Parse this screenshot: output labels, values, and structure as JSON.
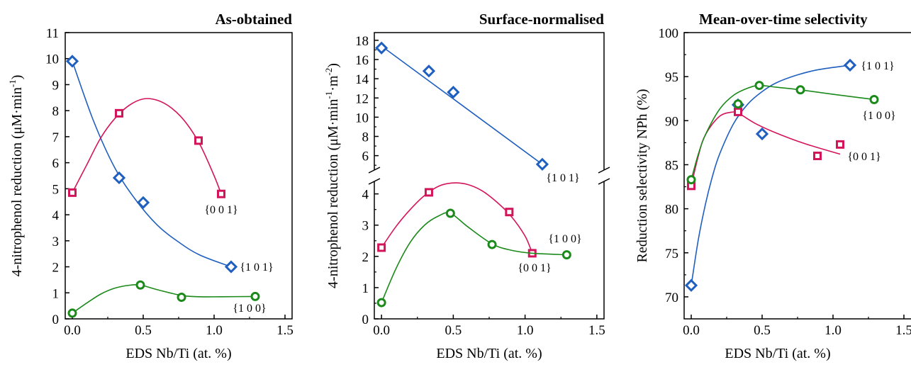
{
  "colors": {
    "blue": "#1f5fbf",
    "red": "#d4145a",
    "green": "#1b8a1b",
    "axis": "#000000"
  },
  "chart_data": [
    {
      "type": "scatter",
      "title": "As-obtained",
      "xlabel": "EDS Nb/Ti (at. %)",
      "ylabel_main": "4-nitrophenol reduction (μM·min",
      "ylabel_sup": "-1",
      "ylabel_tail": ")",
      "xlim": [
        -0.05,
        1.55
      ],
      "ylim": [
        0,
        11
      ],
      "xticks": [
        "0.0",
        "0.5",
        "1.0",
        "1.5"
      ],
      "yticks": [
        "0",
        "1",
        "2",
        "3",
        "4",
        "5",
        "6",
        "7",
        "8",
        "9",
        "10",
        "11"
      ],
      "series": [
        {
          "name": "{1 0 1}",
          "color": "blue",
          "marker": "diamond",
          "x": [
            0.0,
            0.33,
            0.5,
            1.12
          ],
          "y": [
            9.9,
            5.42,
            4.47,
            2.0
          ],
          "curve_x": [
            0.0,
            0.15,
            0.3,
            0.45,
            0.6,
            0.75,
            0.9,
            1.12
          ],
          "curve_y": [
            9.9,
            7.6,
            5.8,
            4.55,
            3.6,
            2.95,
            2.45,
            2.0
          ]
        },
        {
          "name": "{0 0 1}",
          "color": "red",
          "marker": "square",
          "x": [
            0.0,
            0.33,
            0.89,
            1.05
          ],
          "y": [
            4.85,
            7.9,
            6.85,
            4.8
          ],
          "curve_x": [
            0.0,
            0.1,
            0.2,
            0.3,
            0.4,
            0.5,
            0.6,
            0.7,
            0.8,
            0.9,
            1.0,
            1.05
          ],
          "curve_y": [
            4.85,
            5.9,
            6.95,
            7.7,
            8.2,
            8.45,
            8.4,
            8.1,
            7.55,
            6.7,
            5.5,
            4.8
          ]
        },
        {
          "name": "{1 0 0}",
          "color": "green",
          "marker": "circle",
          "x": [
            0.0,
            0.48,
            0.77,
            1.29
          ],
          "y": [
            0.22,
            1.3,
            0.83,
            0.86
          ],
          "curve_x": [
            0.0,
            0.1,
            0.2,
            0.3,
            0.4,
            0.48,
            0.6,
            0.77,
            0.9,
            1.05,
            1.29
          ],
          "curve_y": [
            0.22,
            0.6,
            0.95,
            1.18,
            1.29,
            1.3,
            1.12,
            0.9,
            0.85,
            0.85,
            0.86
          ]
        }
      ]
    },
    {
      "type": "scatter",
      "title": "Surface-normalised",
      "xlabel": "EDS Nb/Ti (at. %)",
      "ylabel_main": "4-nitrophenol reduction (μM·min",
      "ylabel_sup": "-1",
      "ylabel_mid": "·m",
      "ylabel_sup2": "-2",
      "ylabel_tail": ")",
      "xlim": [
        -0.05,
        1.55
      ],
      "ylim_lower": [
        0,
        4.4
      ],
      "ylim_upper": [
        4.5,
        18.8
      ],
      "xticks": [
        "0.0",
        "0.5",
        "1.0",
        "1.5"
      ],
      "yticks_lower": [
        "0",
        "1",
        "2",
        "3",
        "4"
      ],
      "yticks_upper": [
        "6",
        "8",
        "10",
        "12",
        "14",
        "16",
        "18"
      ],
      "series": [
        {
          "name": "{1 0 1}",
          "color": "blue",
          "marker": "diamond",
          "panel": "upper",
          "x": [
            0.0,
            0.33,
            0.5,
            1.12
          ],
          "y": [
            17.2,
            14.8,
            12.6,
            5.1
          ],
          "curve_x": [
            0.0,
            1.12
          ],
          "curve_y": [
            17.4,
            5.1
          ]
        },
        {
          "name": "{0 0 1}",
          "color": "red",
          "marker": "square",
          "panel": "lower",
          "x": [
            0.0,
            0.33,
            0.89,
            1.05
          ],
          "y": [
            2.28,
            4.05,
            3.42,
            2.1
          ],
          "curve_x": [
            0.0,
            0.1,
            0.2,
            0.3,
            0.4,
            0.5,
            0.6,
            0.7,
            0.8,
            0.9,
            1.0,
            1.05
          ],
          "curve_y": [
            2.28,
            2.95,
            3.5,
            3.95,
            4.25,
            4.35,
            4.3,
            4.1,
            3.75,
            3.3,
            2.65,
            2.1
          ]
        },
        {
          "name": "{1 0 0}",
          "color": "green",
          "marker": "circle",
          "panel": "lower",
          "x": [
            0.0,
            0.48,
            0.77,
            1.29
          ],
          "y": [
            0.52,
            3.38,
            2.38,
            2.05
          ],
          "curve_x": [
            0.0,
            0.1,
            0.2,
            0.3,
            0.4,
            0.48,
            0.6,
            0.77,
            0.9,
            1.05,
            1.29
          ],
          "curve_y": [
            0.52,
            1.6,
            2.45,
            3.0,
            3.3,
            3.38,
            2.95,
            2.4,
            2.2,
            2.1,
            2.05
          ]
        }
      ]
    },
    {
      "type": "scatter",
      "title": "Mean-over-time selectivity",
      "xlabel": "EDS Nb/Ti (at. %)",
      "ylabel": "Reduction selectivity NPh (%)",
      "xlim": [
        -0.05,
        1.55
      ],
      "ylim": [
        67.5,
        100
      ],
      "xticks": [
        "0.0",
        "0.5",
        "1.0",
        "1.5"
      ],
      "yticks": [
        "70",
        "75",
        "80",
        "85",
        "90",
        "95",
        "100"
      ],
      "series": [
        {
          "name": "{1 0 1}",
          "color": "blue",
          "marker": "diamond",
          "x": [
            0.0,
            0.33,
            0.5,
            1.12
          ],
          "y": [
            71.3,
            91.8,
            88.5,
            96.3
          ],
          "curve_x": [
            0.0,
            0.05,
            0.1,
            0.15,
            0.2,
            0.3,
            0.4,
            0.5,
            0.6,
            0.75,
            0.9,
            1.12
          ],
          "curve_y": [
            71.3,
            76.5,
            80.5,
            83.7,
            86.2,
            89.7,
            91.9,
            93.3,
            94.3,
            95.2,
            95.8,
            96.3
          ]
        },
        {
          "name": "{0 0 1}",
          "color": "red",
          "marker": "square",
          "x": [
            0.0,
            0.33,
            0.89,
            1.05
          ],
          "y": [
            82.6,
            91.0,
            86.0,
            87.3
          ],
          "curve_x": [
            0.0,
            0.05,
            0.1,
            0.2,
            0.3,
            0.33,
            0.45,
            0.6,
            0.8,
            1.05
          ],
          "curve_y": [
            82.6,
            86.0,
            88.4,
            90.5,
            91.0,
            90.9,
            89.7,
            88.6,
            87.4,
            86.2
          ]
        },
        {
          "name": "{1 0 0}",
          "color": "green",
          "marker": "circle",
          "x": [
            0.0,
            0.33,
            0.48,
            0.77,
            1.29
          ],
          "y": [
            83.3,
            91.9,
            94.0,
            93.5,
            92.4
          ],
          "curve_x": [
            0.0,
            0.05,
            0.1,
            0.2,
            0.3,
            0.4,
            0.48,
            0.6,
            0.77,
            1.0,
            1.29
          ],
          "curve_y": [
            83.3,
            86.2,
            88.4,
            91.3,
            92.9,
            93.7,
            94.0,
            93.8,
            93.5,
            93.0,
            92.4
          ]
        }
      ]
    }
  ]
}
